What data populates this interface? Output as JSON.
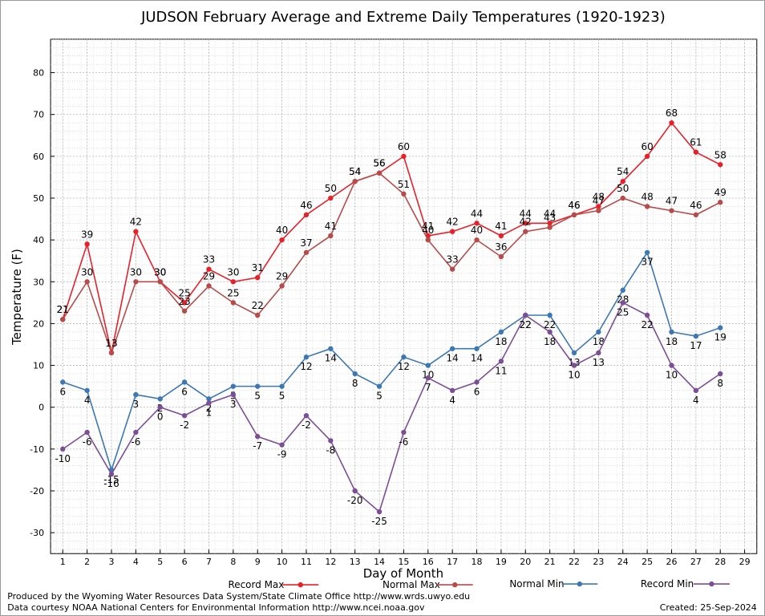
{
  "chart_data": {
    "type": "line",
    "title": "JUDSON February Average and Extreme Daily Temperatures (1920-1923)",
    "xlabel": "Day of Month",
    "ylabel": "Temperature (F)",
    "xlim": [
      0.5,
      29.5
    ],
    "ylim": [
      -35,
      88
    ],
    "x_ticks": [
      1,
      2,
      3,
      4,
      5,
      6,
      7,
      8,
      9,
      10,
      11,
      12,
      13,
      14,
      15,
      16,
      17,
      18,
      19,
      20,
      21,
      22,
      23,
      24,
      25,
      26,
      27,
      28,
      29
    ],
    "y_ticks": [
      -30,
      -20,
      -10,
      0,
      10,
      20,
      30,
      40,
      50,
      60,
      70,
      80
    ],
    "grid": true,
    "legend_position": "bottom",
    "series": [
      {
        "name": "Record Max",
        "color": "#e8202a",
        "values": [
          21,
          39,
          13,
          42,
          30,
          25,
          33,
          30,
          31,
          40,
          46,
          50,
          54,
          56,
          60,
          41,
          42,
          44,
          41,
          44,
          44,
          46,
          48,
          54,
          60,
          68,
          61,
          58
        ]
      },
      {
        "name": "Normal Max",
        "color": "#b84a4a",
        "values": [
          21,
          30,
          13,
          30,
          30,
          23,
          29,
          25,
          22,
          29,
          37,
          41,
          54,
          56,
          51,
          40,
          33,
          40,
          36,
          42,
          43,
          46,
          47,
          50,
          48,
          47,
          46,
          49
        ]
      },
      {
        "name": "Normal Min",
        "color": "#3c78b4",
        "values": [
          6,
          4,
          -15,
          3,
          2,
          6,
          2,
          5,
          5,
          5,
          12,
          14,
          8,
          5,
          12,
          10,
          14,
          14,
          18,
          22,
          22,
          13,
          18,
          28,
          37,
          18,
          17,
          19
        ]
      },
      {
        "name": "Record Min",
        "color": "#7b4e96",
        "values": [
          -10,
          -6,
          -16,
          -6,
          0,
          -2,
          1,
          3,
          -7,
          -9,
          -2,
          -8,
          -20,
          -25,
          -6,
          7,
          4,
          6,
          11,
          22,
          18,
          10,
          13,
          25,
          22,
          10,
          4,
          8
        ]
      }
    ]
  },
  "footer": {
    "line1": "Produced by the Wyoming Water Resources Data System/State Climate Office http://www.wrds.uwyo.edu",
    "line2": "Data courtesy NOAA National Centers for Environmental Information http://www.ncei.noaa.gov",
    "created": "Created: 25-Sep-2024"
  }
}
